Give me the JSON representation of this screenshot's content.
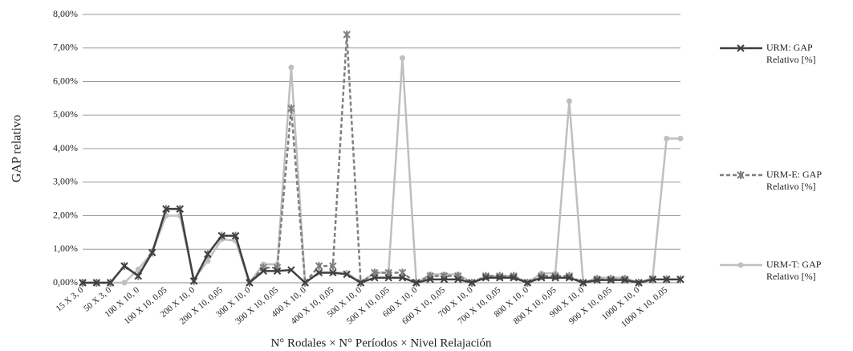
{
  "chart_data": {
    "type": "line",
    "ylabel": "GAP  relativo",
    "xlabel": "N° Rodales × N° Períodos × Nivel Relajación",
    "categories": [
      "15 X 3, 0",
      null,
      "50 X 3, 0",
      null,
      "100 X 10, 0",
      null,
      "100 X 10, 0,05",
      null,
      "200 X 10, 0",
      null,
      "200 X 10, 0,05",
      null,
      "300 X 10, 0",
      null,
      "300 X 10, 0,05",
      null,
      "400 X 10, 0",
      null,
      "400 X 10, 0,05",
      null,
      "500 X 10, 0",
      null,
      "500 X 10, 0,05",
      null,
      "600 X 10, 0",
      null,
      "600 X 10, 0,05",
      null,
      "700 X 10, 0",
      null,
      "700 X 10, 0,05",
      null,
      "800 X 10, 0",
      null,
      "800 X 10, 0,05",
      null,
      "900 X 10, 0",
      null,
      "900 X 10, 0,05",
      null,
      "1000 X 10, 0",
      null,
      "1000 X 10, 0,05",
      null
    ],
    "series": [
      {
        "name": "URM: GAP Relativo [%]",
        "color": "#404040",
        "dash": false,
        "marker": "x",
        "values": [
          0,
          0,
          0,
          0.5,
          0.2,
          0.9,
          2.2,
          2.2,
          0.05,
          0.85,
          1.4,
          1.4,
          0,
          0.35,
          0.35,
          0.38,
          0,
          0.3,
          0.3,
          0.25,
          0,
          0.15,
          0.15,
          0.15,
          0,
          0.1,
          0.1,
          0.1,
          0,
          0.15,
          0.15,
          0.15,
          0,
          0.15,
          0.15,
          0.15,
          0,
          0.08,
          0.08,
          0.08,
          0,
          0.1,
          0.1,
          0.1
        ]
      },
      {
        "name": "URM-E: GAP Relativo [%]",
        "color": "#7f7f7f",
        "dash": true,
        "marker": "asterisk",
        "values": [
          0,
          0,
          0,
          0.5,
          0.2,
          0.9,
          2.2,
          2.2,
          0.05,
          0.85,
          1.4,
          1.4,
          0,
          0.45,
          0.45,
          5.2,
          0,
          0.5,
          0.5,
          7.4,
          0,
          0.3,
          0.3,
          0.3,
          0,
          0.2,
          0.2,
          0.2,
          0,
          0.2,
          0.2,
          0.2,
          0,
          0.2,
          0.2,
          0.2,
          0,
          0.1,
          0.1,
          0.1,
          0,
          0.1,
          0.1,
          0.1
        ]
      },
      {
        "name": "URM-T: GAP Relativo [%]",
        "color": "#bfbfbf",
        "dash": false,
        "marker": "circle",
        "values": [
          0,
          0,
          0,
          0,
          0.4,
          0.9,
          2.0,
          2.0,
          0.1,
          0.65,
          1.3,
          1.25,
          0,
          0.55,
          0.55,
          6.42,
          0,
          0.3,
          0.3,
          0.3,
          0,
          0.3,
          0.3,
          6.7,
          0,
          0.25,
          0.25,
          0.25,
          0,
          0.2,
          0.2,
          0.2,
          0,
          0.28,
          0.28,
          5.42,
          0,
          0.15,
          0.15,
          0.15,
          0,
          0.15,
          4.3,
          4.3
        ]
      }
    ],
    "ylim": [
      0,
      8
    ],
    "yticks": [
      {
        "value": 0,
        "label": "0,00%"
      },
      {
        "value": 1,
        "label": "1,00%"
      },
      {
        "value": 2,
        "label": "2,00%"
      },
      {
        "value": 3,
        "label": "3,00%"
      },
      {
        "value": 4,
        "label": "4,00%"
      },
      {
        "value": 5,
        "label": "5,00%"
      },
      {
        "value": 6,
        "label": "6,00%"
      },
      {
        "value": 7,
        "label": "7,00%"
      },
      {
        "value": 8,
        "label": "8,00%"
      }
    ],
    "grid": true,
    "legend": "right"
  }
}
